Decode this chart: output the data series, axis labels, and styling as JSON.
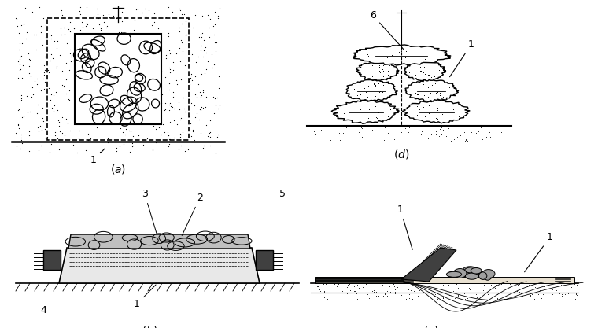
{
  "bg_color": "#ffffff",
  "fig_width": 7.6,
  "fig_height": 4.17,
  "dpi": 100
}
